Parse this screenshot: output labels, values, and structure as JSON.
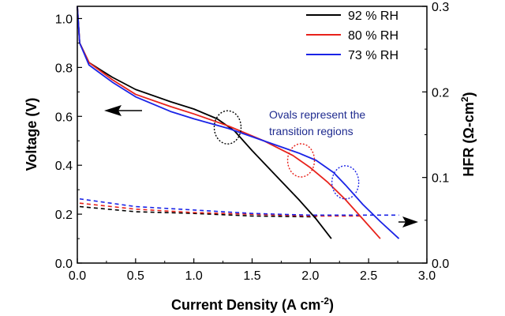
{
  "chart_data": {
    "type": "line",
    "xlabel": "Current Density (A cm",
    "xlabel_sup": "-2",
    "xlabel_end": ")",
    "ylabel_left": "Voltage (V)",
    "ylabel_right_main": "HFR (Ω-cm",
    "ylabel_right_sup": "2",
    "ylabel_right_end": ")",
    "xlim": [
      0.0,
      3.0
    ],
    "ylim_left": [
      0.0,
      1.05
    ],
    "ylim_right": [
      0.0,
      0.3
    ],
    "x_ticks": [
      "0.0",
      "0.5",
      "1.0",
      "1.5",
      "2.0",
      "2.5",
      "3.0"
    ],
    "x_tick_values": [
      0,
      0.5,
      1.0,
      1.5,
      2.0,
      2.5,
      3.0
    ],
    "y_left_ticks": [
      "0.0",
      "0.2",
      "0.4",
      "0.6",
      "0.8",
      "1.0"
    ],
    "y_left_tick_values": [
      0,
      0.2,
      0.4,
      0.6,
      0.8,
      1.0
    ],
    "y_right_ticks": [
      "0.0",
      "0.1",
      "0.2",
      "0.3"
    ],
    "y_right_tick_values": [
      0,
      0.1,
      0.2,
      0.3
    ],
    "annotation_line1": "Ovals represent the",
    "annotation_line2": "transition regions",
    "annotation_color": "#1f2b8f",
    "series": [
      {
        "name": "92 % RH",
        "color": "#000000",
        "polarization": [
          [
            0.0,
            1.05
          ],
          [
            0.02,
            0.9
          ],
          [
            0.1,
            0.82
          ],
          [
            0.3,
            0.76
          ],
          [
            0.5,
            0.71
          ],
          [
            0.8,
            0.66
          ],
          [
            1.0,
            0.63
          ],
          [
            1.2,
            0.59
          ],
          [
            1.35,
            0.54
          ],
          [
            1.5,
            0.46
          ],
          [
            1.7,
            0.36
          ],
          [
            1.9,
            0.26
          ],
          [
            2.05,
            0.18
          ],
          [
            2.18,
            0.1
          ]
        ],
        "hfr": [
          [
            0.02,
            0.066
          ],
          [
            0.5,
            0.06
          ],
          [
            1.0,
            0.058
          ],
          [
            1.5,
            0.055
          ],
          [
            2.05,
            0.054
          ]
        ],
        "transition": {
          "x": 1.29,
          "y": 0.555
        }
      },
      {
        "name": "80 % RH",
        "color": "#e8221b",
        "polarization": [
          [
            0.0,
            1.05
          ],
          [
            0.02,
            0.9
          ],
          [
            0.1,
            0.82
          ],
          [
            0.3,
            0.75
          ],
          [
            0.5,
            0.69
          ],
          [
            0.8,
            0.64
          ],
          [
            1.0,
            0.61
          ],
          [
            1.3,
            0.56
          ],
          [
            1.6,
            0.5
          ],
          [
            1.85,
            0.44
          ],
          [
            2.0,
            0.39
          ],
          [
            2.15,
            0.33
          ],
          [
            2.3,
            0.26
          ],
          [
            2.45,
            0.18
          ],
          [
            2.6,
            0.1
          ]
        ],
        "hfr": [
          [
            0.02,
            0.07
          ],
          [
            0.5,
            0.063
          ],
          [
            1.0,
            0.059
          ],
          [
            1.5,
            0.057
          ],
          [
            2.0,
            0.055
          ],
          [
            2.45,
            0.055
          ]
        ],
        "transition": {
          "x": 1.92,
          "y": 0.42
        }
      },
      {
        "name": "73 % RH",
        "color": "#1a23e6",
        "polarization": [
          [
            0.0,
            1.05
          ],
          [
            0.02,
            0.9
          ],
          [
            0.1,
            0.81
          ],
          [
            0.3,
            0.74
          ],
          [
            0.5,
            0.68
          ],
          [
            0.8,
            0.62
          ],
          [
            1.0,
            0.59
          ],
          [
            1.3,
            0.55
          ],
          [
            1.6,
            0.5
          ],
          [
            1.9,
            0.45
          ],
          [
            2.05,
            0.42
          ],
          [
            2.2,
            0.37
          ],
          [
            2.3,
            0.32
          ],
          [
            2.45,
            0.24
          ],
          [
            2.6,
            0.17
          ],
          [
            2.76,
            0.1
          ]
        ],
        "hfr": [
          [
            0.02,
            0.075
          ],
          [
            0.5,
            0.066
          ],
          [
            1.0,
            0.062
          ],
          [
            1.5,
            0.058
          ],
          [
            2.0,
            0.056
          ],
          [
            2.6,
            0.056
          ],
          [
            2.76,
            0.056
          ]
        ],
        "transition": {
          "x": 2.3,
          "y": 0.33
        }
      }
    ]
  }
}
